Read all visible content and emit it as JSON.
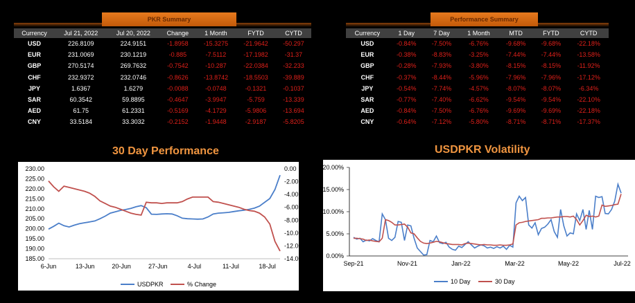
{
  "pkr_summary": {
    "title": "PKR Summary",
    "columns": [
      "Currency",
      "Jul 21, 2022",
      "Jul 20, 2022",
      "Change",
      "1 Month",
      "FYTD",
      "CYTD"
    ],
    "rows": [
      {
        "cur": "USD",
        "a": "226.8109",
        "b": "224.9151",
        "chg": "-1.8958",
        "m1": "-15.3275",
        "fytd": "-21.9642",
        "cytd": "-50.297"
      },
      {
        "cur": "EUR",
        "a": "231.0069",
        "b": "230.1219",
        "chg": "-0.885",
        "m1": "-7.5112",
        "fytd": "-17.1982",
        "cytd": "-31.37"
      },
      {
        "cur": "GBP",
        "a": "270.5174",
        "b": "269.7632",
        "chg": "-0.7542",
        "m1": "-10.287",
        "fytd": "-22.0384",
        "cytd": "-32.233"
      },
      {
        "cur": "CHF",
        "a": "232.9372",
        "b": "232.0746",
        "chg": "-0.8626",
        "m1": "-13.8742",
        "fytd": "-18.5503",
        "cytd": "-39.889"
      },
      {
        "cur": "JPY",
        "a": "1.6367",
        "b": "1.6279",
        "chg": "-0.0088",
        "m1": "-0.0748",
        "fytd": "-0.1321",
        "cytd": "-0.1037"
      },
      {
        "cur": "SAR",
        "a": "60.3542",
        "b": "59.8895",
        "chg": "-0.4647",
        "m1": "-3.9947",
        "fytd": "-5.759",
        "cytd": "-13.339"
      },
      {
        "cur": "AED",
        "a": "61.75",
        "b": "61.2331",
        "chg": "-0.5169",
        "m1": "-4.1729",
        "fytd": "-5.9806",
        "cytd": "-13.694"
      },
      {
        "cur": "CNY",
        "a": "33.5184",
        "b": "33.3032",
        "chg": "-0.2152",
        "m1": "-1.9448",
        "fytd": "-2.9187",
        "cytd": "-5.8205"
      }
    ]
  },
  "performance_summary": {
    "title": "Performance Summary",
    "columns": [
      "Currency",
      "1 Day",
      "7 Day",
      "1 Month",
      "MTD",
      "FYTD",
      "CYTD"
    ],
    "rows": [
      {
        "cur": "USD",
        "d1": "-0.84%",
        "d7": "-7.50%",
        "m1": "-6.76%",
        "mtd": "-9.68%",
        "fytd": "-9.68%",
        "cytd": "-22.18%"
      },
      {
        "cur": "EUR",
        "d1": "-0.38%",
        "d7": "-8.83%",
        "m1": "-3.25%",
        "mtd": "-7.44%",
        "fytd": "-7.44%",
        "cytd": "-13.58%"
      },
      {
        "cur": "GBP",
        "d1": "-0.28%",
        "d7": "-7.93%",
        "m1": "-3.80%",
        "mtd": "-8.15%",
        "fytd": "-8.15%",
        "cytd": "-11.92%"
      },
      {
        "cur": "CHF",
        "d1": "-0.37%",
        "d7": "-8.44%",
        "m1": "-5.96%",
        "mtd": "-7.96%",
        "fytd": "-7.96%",
        "cytd": "-17.12%"
      },
      {
        "cur": "JPY",
        "d1": "-0.54%",
        "d7": "-7.74%",
        "m1": "-4.57%",
        "mtd": "-8.07%",
        "fytd": "-8.07%",
        "cytd": "-6.34%"
      },
      {
        "cur": "SAR",
        "d1": "-0.77%",
        "d7": "-7.40%",
        "m1": "-6.62%",
        "mtd": "-9.54%",
        "fytd": "-9.54%",
        "cytd": "-22.10%"
      },
      {
        "cur": "AED",
        "d1": "-0.84%",
        "d7": "-7.50%",
        "m1": "-6.76%",
        "mtd": "-9.69%",
        "fytd": "-9.69%",
        "cytd": "-22.18%"
      },
      {
        "cur": "CNY",
        "d1": "-0.64%",
        "d7": "-7.12%",
        "m1": "-5.80%",
        "mtd": "-8.71%",
        "fytd": "-8.71%",
        "cytd": "-17.37%"
      }
    ]
  },
  "colors": {
    "header_orange": "#e77a1e",
    "title_orange": "#f09540",
    "negative_red": "#e0201a",
    "series_blue": "#4a7ec9",
    "series_red": "#c0504d"
  },
  "chart_data": [
    {
      "type": "line",
      "title": "30 Day Performance",
      "x_ticks": [
        "6-Jun",
        "13-Jun",
        "20-Jun",
        "27-Jun",
        "4-Jul",
        "11-Jul",
        "18-Jul"
      ],
      "y_left_ticks": [
        "230.00",
        "225.00",
        "220.00",
        "215.00",
        "210.00",
        "205.00",
        "200.00",
        "195.00",
        "190.00",
        "185.00"
      ],
      "y_right_ticks": [
        "0.00",
        "-2.00",
        "-4.00",
        "-6.00",
        "-8.00",
        "-10.00",
        "-12.00",
        "-14.00"
      ],
      "ylim_left": [
        185,
        230
      ],
      "ylim_right": [
        -14,
        0
      ],
      "legend_position": "bottom",
      "x": [
        0,
        1,
        2,
        3,
        4,
        5,
        6,
        7,
        8,
        9,
        10,
        11,
        12,
        13,
        14,
        15,
        16,
        17,
        18,
        19,
        20,
        21,
        22,
        23,
        24,
        25,
        26,
        27,
        28,
        29,
        30,
        31,
        32,
        33,
        34,
        35,
        36,
        37,
        38,
        39,
        40,
        41,
        42,
        43,
        44,
        45
      ],
      "series": [
        {
          "name": "USDPKR",
          "axis": "left",
          "color": "#4a7ec9",
          "values": [
            199.8,
            201.2,
            202.8,
            201.5,
            200.9,
            201.8,
            202.5,
            203.0,
            203.4,
            203.9,
            205.0,
            206.3,
            207.8,
            208.5,
            209.2,
            209.6,
            210.2,
            211.0,
            211.6,
            210.5,
            207.3,
            207.2,
            207.4,
            207.5,
            207.4,
            206.5,
            205.3,
            205.0,
            204.9,
            204.8,
            204.9,
            205.9,
            207.4,
            207.8,
            208.0,
            208.2,
            208.6,
            209.0,
            209.3,
            209.7,
            210.3,
            211.3,
            213.2,
            215.1,
            219.6,
            226.8
          ]
        },
        {
          "name": "% Change",
          "axis": "right",
          "color": "#c0504d",
          "values": [
            -1.9,
            -2.8,
            -3.5,
            -2.7,
            -2.9,
            -3.1,
            -3.3,
            -3.5,
            -3.8,
            -4.3,
            -5.0,
            -5.4,
            -5.8,
            -6.0,
            -6.3,
            -6.6,
            -6.9,
            -7.1,
            -7.2,
            -5.2,
            -5.3,
            -5.3,
            -5.4,
            -5.3,
            -5.3,
            -5.3,
            -5.1,
            -4.7,
            -4.4,
            -4.4,
            -4.4,
            -4.4,
            -5.1,
            -5.2,
            -5.4,
            -5.6,
            -5.8,
            -6.0,
            -6.3,
            -6.5,
            -6.6,
            -6.9,
            -7.5,
            -8.6,
            -11.3,
            -12.8
          ]
        }
      ]
    },
    {
      "type": "line",
      "title": "USDPKR Volatility",
      "x_ticks": [
        "Sep-21",
        "Nov-21",
        "Jan-22",
        "Mar-22",
        "May-22",
        "Jul-22"
      ],
      "y_ticks": [
        "20.00%",
        "15.00%",
        "10.00%",
        "5.00%",
        "0.00%"
      ],
      "ylim": [
        0,
        20
      ],
      "legend_position": "bottom",
      "series": [
        {
          "name": "10 Day",
          "color": "#4a7ec9",
          "values": [
            4.2,
            3.8,
            4.0,
            3.2,
            3.6,
            3.4,
            3.9,
            3.5,
            3.2,
            9.5,
            8.2,
            4.0,
            3.5,
            4.2,
            7.8,
            7.6,
            3.5,
            7.0,
            6.8,
            4.0,
            1.8,
            1.0,
            0.2,
            0.3,
            3.5,
            3.2,
            4.5,
            3.0,
            2.8,
            3.1,
            2.0,
            1.5,
            1.3,
            2.2,
            1.9,
            2.6,
            3.2,
            2.5,
            1.8,
            2.2,
            2.5,
            2.3,
            1.8,
            2.0,
            1.7,
            2.1,
            1.8,
            2.2,
            1.5,
            2.4,
            2.0,
            12.0,
            13.5,
            12.5,
            13.2,
            7.0,
            6.3,
            7.5,
            4.8,
            6.2,
            6.5,
            7.2,
            8.2,
            5.5,
            4.2,
            10.5,
            6.8,
            4.5,
            5.2,
            5.0,
            9.5,
            8.0,
            10.5,
            6.0,
            10.3,
            6.0,
            13.5,
            13.2,
            13.4,
            9.6,
            9.5,
            10.5,
            12.4,
            16.2,
            14.2
          ]
        },
        {
          "name": "30 Day",
          "color": "#c0504d",
          "values": [
            4.0,
            4.0,
            3.9,
            3.8,
            3.5,
            3.6,
            3.4,
            3.3,
            3.2,
            4.0,
            8.2,
            8.0,
            7.6,
            7.0,
            7.0,
            7.1,
            7.2,
            6.5,
            5.2,
            5.0,
            4.1,
            3.3,
            2.9,
            2.8,
            2.9,
            3.1,
            3.3,
            3.2,
            3.0,
            2.8,
            2.7,
            2.6,
            2.6,
            2.6,
            2.5,
            2.8,
            2.9,
            2.8,
            2.7,
            2.6,
            2.5,
            2.6,
            2.5,
            2.5,
            2.4,
            2.4,
            2.5,
            2.4,
            2.4,
            2.5,
            2.7,
            7.0,
            7.5,
            7.6,
            7.8,
            7.9,
            8.0,
            8.1,
            8.2,
            8.5,
            8.5,
            8.6,
            8.6,
            8.7,
            8.8,
            8.8,
            8.9,
            8.9,
            8.8,
            9.0,
            8.2,
            7.0,
            8.0,
            9.2,
            8.9,
            9.0,
            8.8,
            9.0,
            11.5,
            11.2,
            11.3,
            11.4,
            11.6,
            11.7,
            14.0
          ]
        }
      ]
    }
  ]
}
